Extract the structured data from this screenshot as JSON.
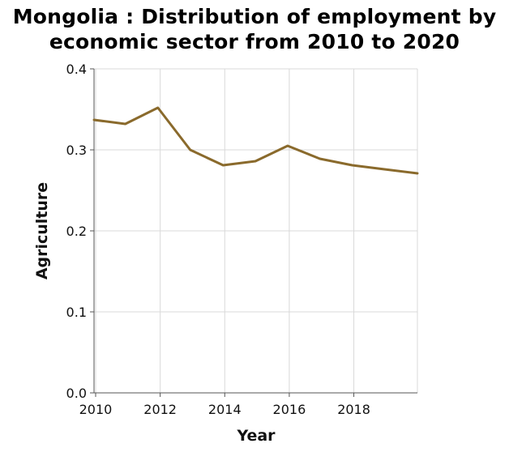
{
  "title_lines": [
    "Mongolia : Distribution of employment by",
    "economic sector from 2010 to 2020"
  ],
  "colors": {
    "line": "#8a6a2c",
    "grid": "#d9d9d9",
    "axis": "#555555",
    "text": "#111111"
  },
  "chart_data": {
    "type": "line",
    "title": "Mongolia : Distribution of employment by economic sector from 2010 to 2020",
    "xlabel": "Year",
    "ylabel": "Agriculture",
    "xlim": [
      2009.95,
      2019.97
    ],
    "ylim": [
      0.0,
      0.4
    ],
    "x": [
      2009.95,
      2010.92,
      2011.93,
      2012.93,
      2013.95,
      2014.95,
      2015.95,
      2016.95,
      2017.95,
      2018.95,
      2019.97
    ],
    "y": [
      0.337,
      0.332,
      0.352,
      0.3,
      0.281,
      0.286,
      0.305,
      0.289,
      0.281,
      0.276,
      0.271
    ],
    "x_ticks": [
      2010,
      2012,
      2014,
      2016,
      2018
    ],
    "x_tick_labels": [
      "2010",
      "2012",
      "2014",
      "2016",
      "2018"
    ],
    "y_ticks": [
      0.0,
      0.1,
      0.2,
      0.3,
      0.4
    ],
    "y_tick_labels": [
      "0.0",
      "0.1",
      "0.2",
      "0.3",
      "0.4"
    ],
    "grid": true,
    "legend": false
  }
}
